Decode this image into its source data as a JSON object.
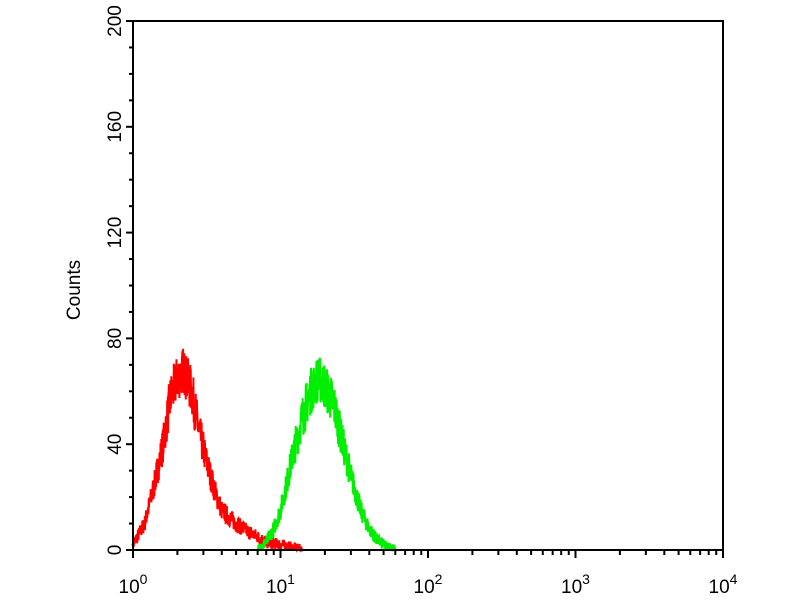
{
  "chart_data": {
    "type": "line",
    "title": "",
    "xlabel": "",
    "ylabel": "Counts",
    "xscale": "log",
    "xlim": [
      1,
      10000
    ],
    "ylim": [
      0,
      200
    ],
    "grid": false,
    "x_ticks": [
      {
        "base": "10",
        "exp": "0",
        "value": 1
      },
      {
        "base": "10",
        "exp": "1",
        "value": 10
      },
      {
        "base": "10",
        "exp": "2",
        "value": 100
      },
      {
        "base": "10",
        "exp": "3",
        "value": 1000
      },
      {
        "base": "10",
        "exp": "4",
        "value": 10000
      }
    ],
    "y_ticks": [
      "0",
      "40",
      "80",
      "120",
      "160",
      "200"
    ],
    "series": [
      {
        "color": "#ff0000",
        "x": [
          1,
          1.2,
          1.4,
          1.6,
          1.8,
          2.0,
          2.2,
          2.5,
          2.8,
          3.2,
          3.6,
          4,
          5,
          6,
          7,
          8,
          10,
          12,
          14
        ],
        "y": [
          2,
          10,
          25,
          40,
          58,
          65,
          68,
          60,
          45,
          32,
          22,
          15,
          10,
          7,
          5,
          3,
          2,
          1,
          0
        ]
      },
      {
        "color": "#00ee00",
        "x": [
          7,
          8,
          9,
          10,
          11,
          12,
          14,
          16,
          18,
          20,
          23,
          26,
          30,
          35,
          40,
          45,
          50,
          60
        ],
        "y": [
          0,
          3,
          8,
          15,
          25,
          35,
          50,
          60,
          65,
          62,
          55,
          42,
          28,
          15,
          8,
          4,
          2,
          0
        ]
      }
    ]
  }
}
